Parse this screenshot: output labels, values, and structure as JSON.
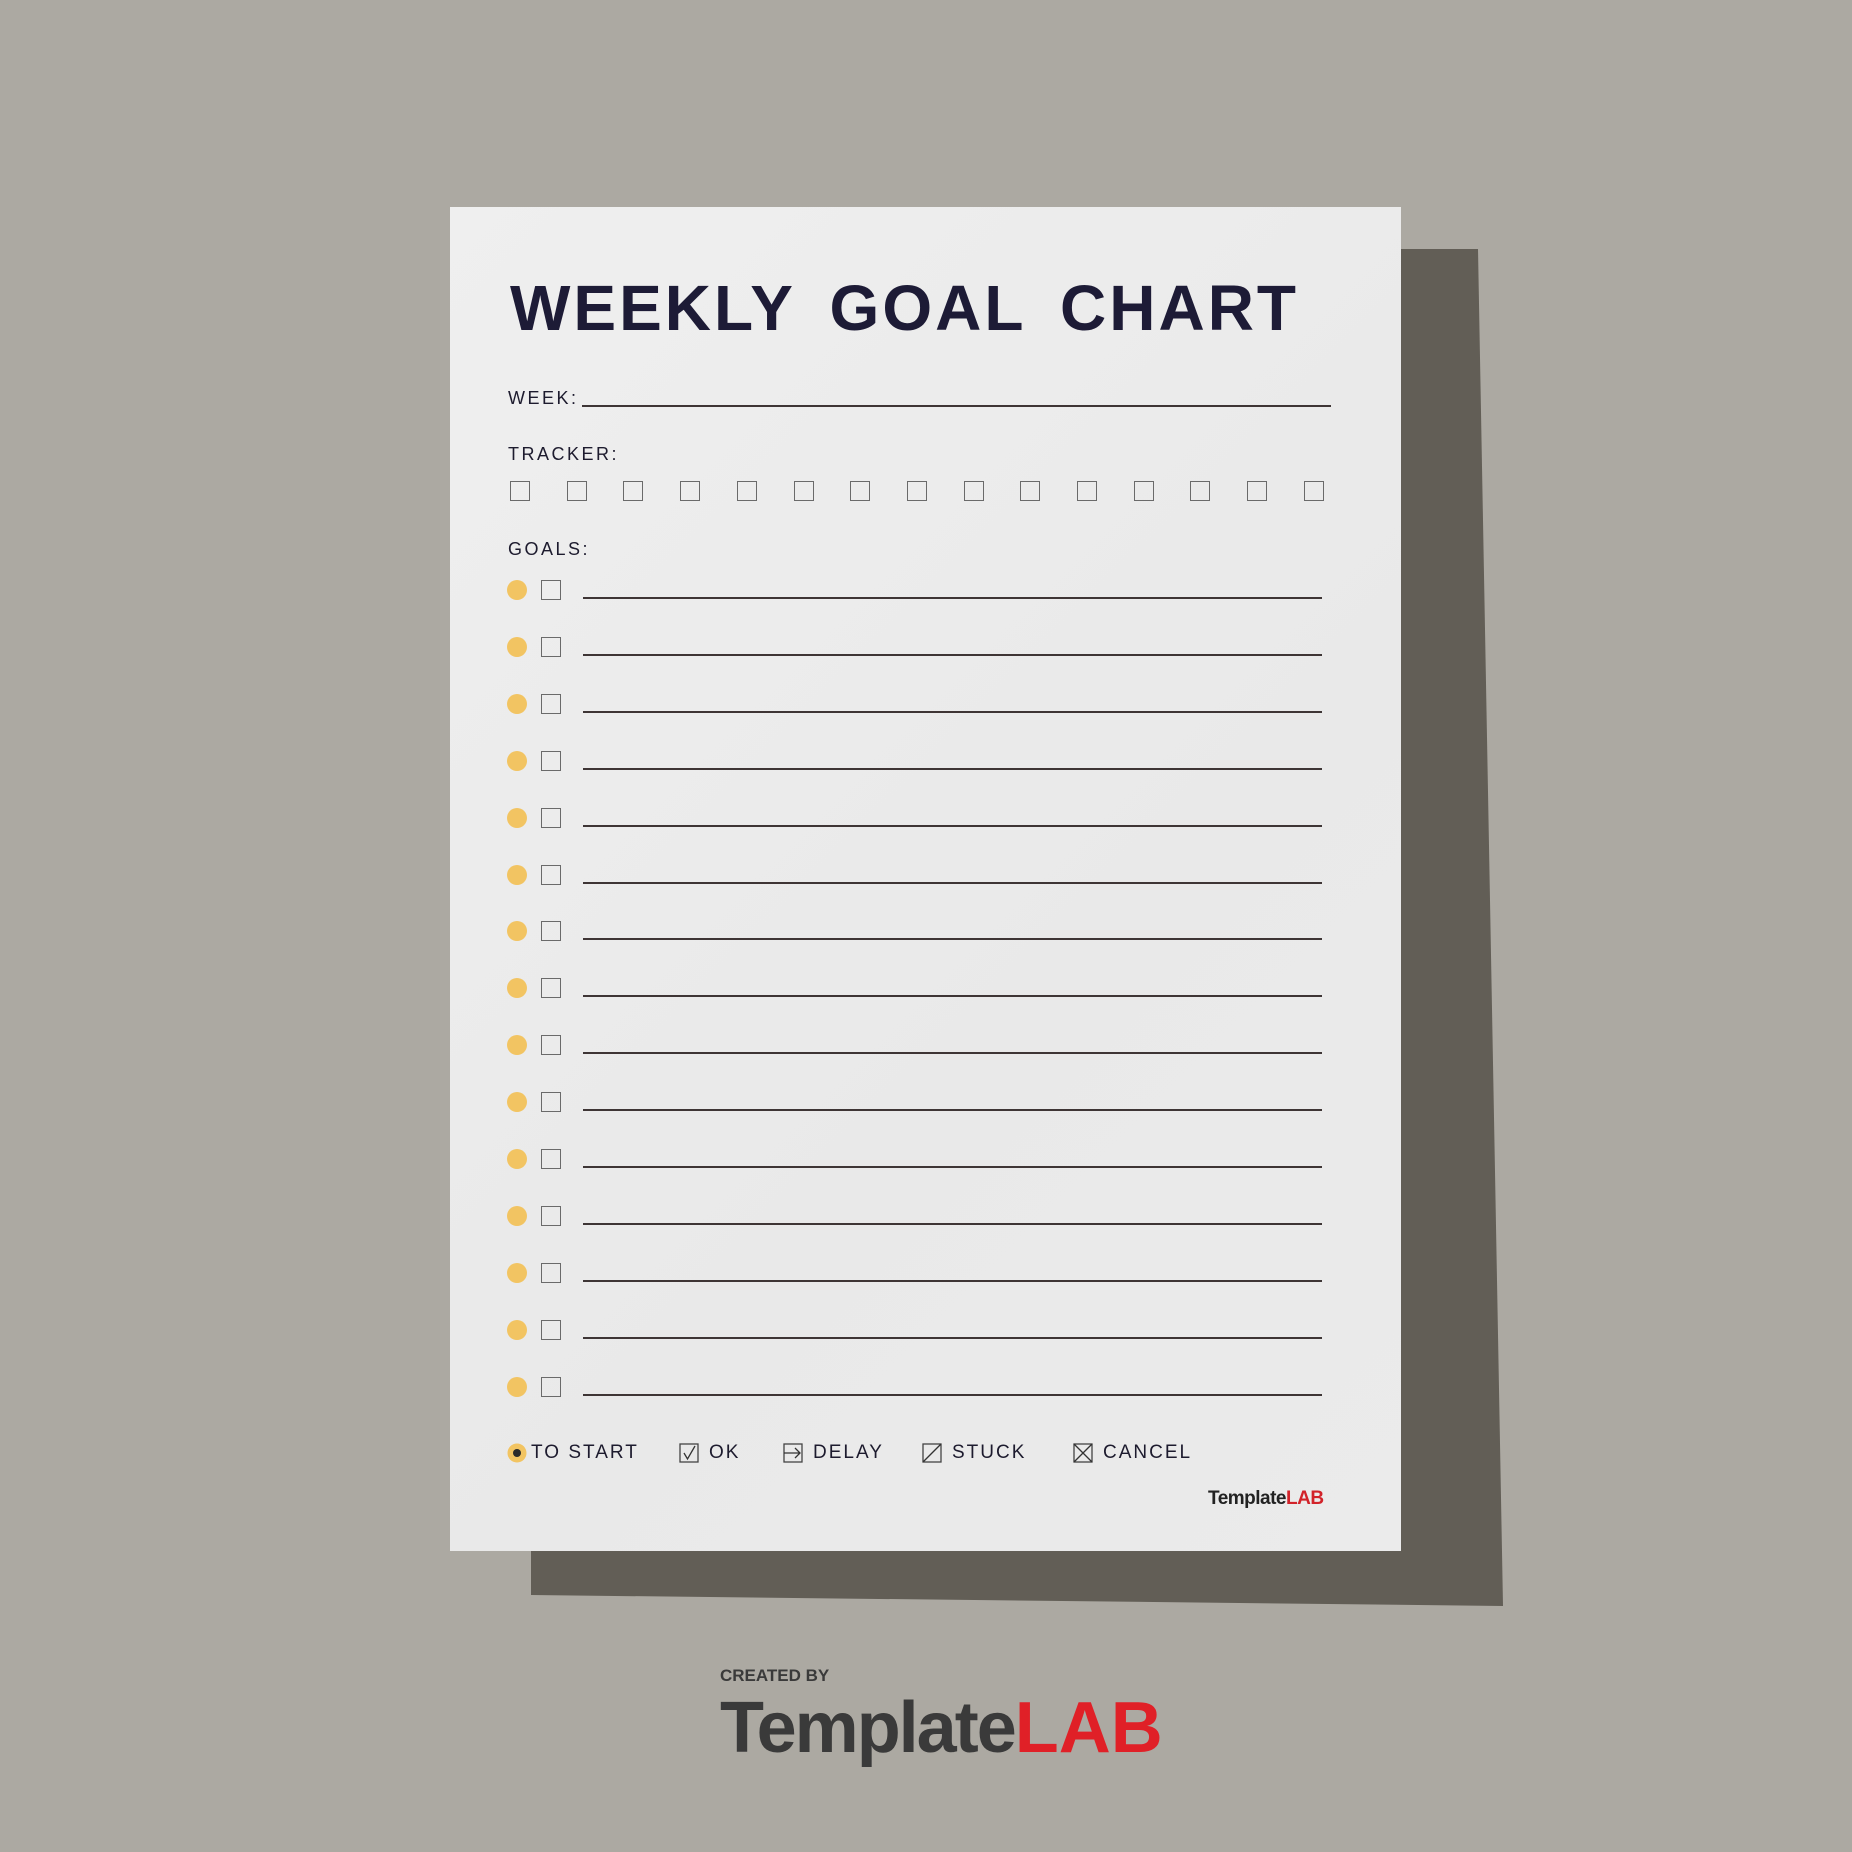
{
  "title": "WEEKLY GOAL CHART",
  "week": {
    "label": "WEEK:",
    "value": ""
  },
  "tracker": {
    "label": "TRACKER:",
    "boxes": [
      false,
      false,
      false,
      false,
      false,
      false,
      false,
      false,
      false,
      false,
      false,
      false,
      false,
      false,
      false
    ]
  },
  "goals": {
    "label": "GOALS:",
    "rows": [
      {
        "text": "",
        "checked": false
      },
      {
        "text": "",
        "checked": false
      },
      {
        "text": "",
        "checked": false
      },
      {
        "text": "",
        "checked": false
      },
      {
        "text": "",
        "checked": false
      },
      {
        "text": "",
        "checked": false
      },
      {
        "text": "",
        "checked": false
      },
      {
        "text": "",
        "checked": false
      },
      {
        "text": "",
        "checked": false
      },
      {
        "text": "",
        "checked": false
      },
      {
        "text": "",
        "checked": false
      },
      {
        "text": "",
        "checked": false
      },
      {
        "text": "",
        "checked": false
      },
      {
        "text": "",
        "checked": false
      },
      {
        "text": "",
        "checked": false
      }
    ]
  },
  "legend": [
    {
      "icon": "dot-circle-icon",
      "label": "TO START"
    },
    {
      "icon": "checkbox-check-icon",
      "label": "OK"
    },
    {
      "icon": "box-arrow-icon",
      "label": "DELAY"
    },
    {
      "icon": "box-slash-icon",
      "label": "STUCK"
    },
    {
      "icon": "box-x-icon",
      "label": "CANCEL"
    }
  ],
  "footer_logo": {
    "template": "Template",
    "lab": "LAB"
  },
  "credit": {
    "created_by": "CREATED BY",
    "template": "Template",
    "lab": "LAB"
  },
  "colors": {
    "accent": "#f2c462",
    "title": "#1d1b36",
    "brand_red": "#e02027",
    "background": "#aca9a2",
    "paper": "#ededed"
  }
}
